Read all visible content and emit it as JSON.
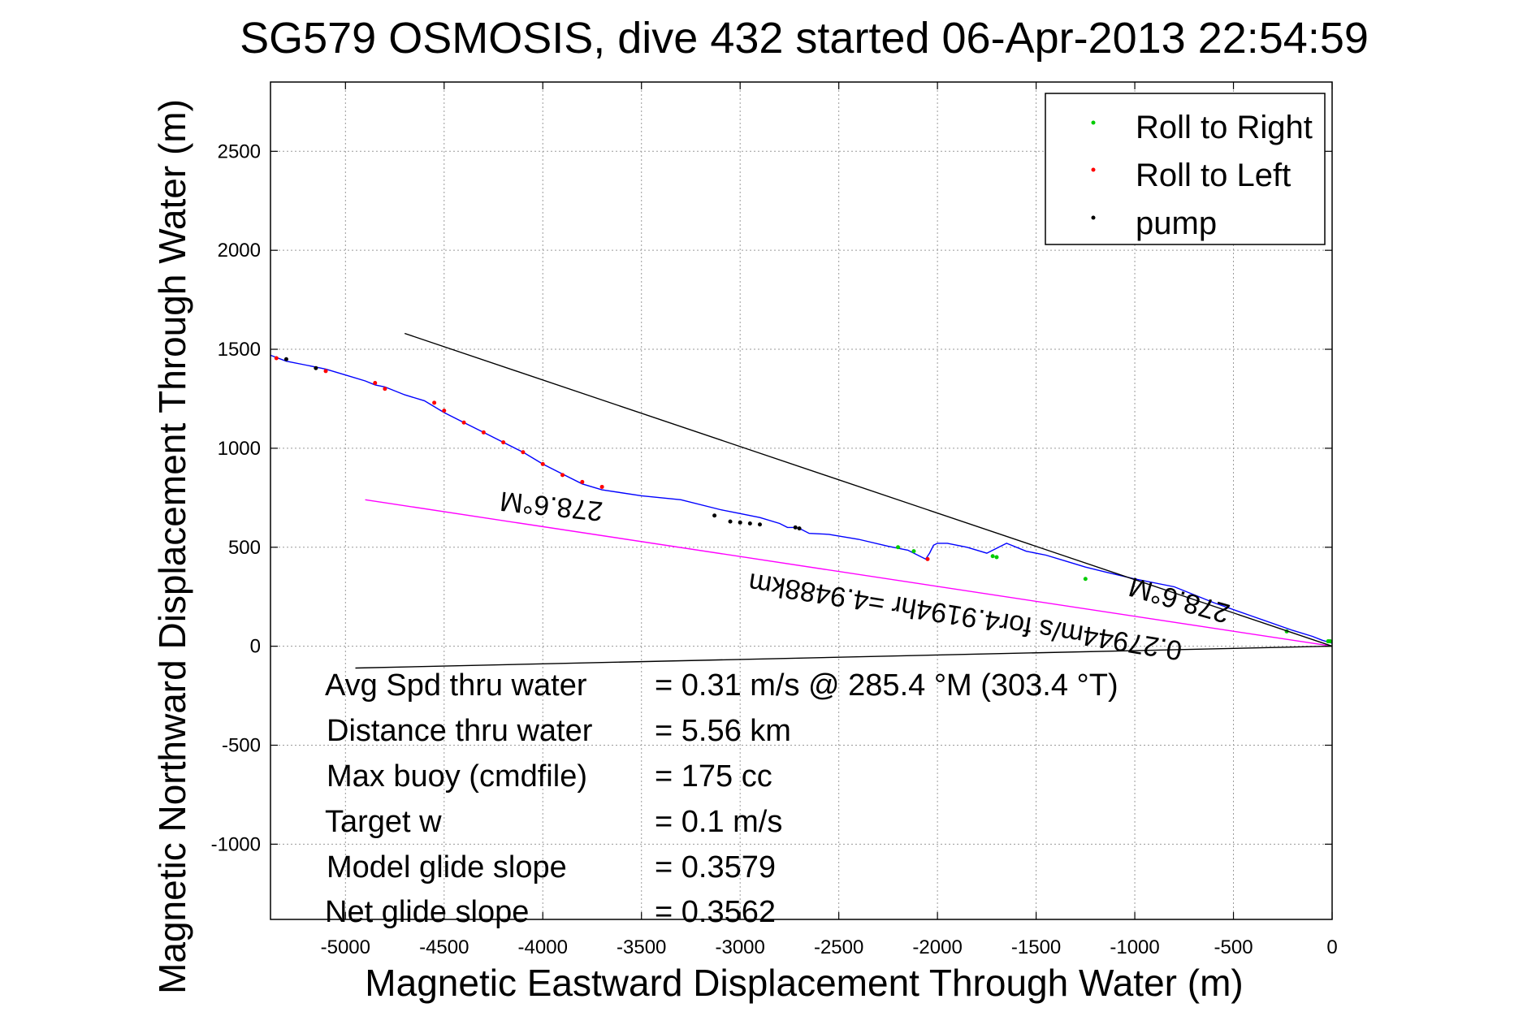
{
  "chart_data": {
    "type": "line",
    "title": "SG579 OSMOSIS, dive 432 started 06-Apr-2013 22:54:59",
    "xlabel": "Magnetic Eastward Displacement Through Water (m)",
    "ylabel": "Magnetic Northward Displacement Through Water (m)",
    "xlim": [
      -5380,
      0
    ],
    "ylim": [
      -1380,
      2850
    ],
    "x_ticks": [
      -5000,
      -4500,
      -4000,
      -3500,
      -3000,
      -2500,
      -2000,
      -1500,
      -1000,
      -500,
      0
    ],
    "x_tick_labels": [
      "-5000",
      "-4500",
      "-4000",
      "-3500",
      "-3000",
      "-2500",
      "-2000",
      "-1500",
      "-1000",
      "-500",
      "0"
    ],
    "y_ticks": [
      -1000,
      -500,
      0,
      500,
      1000,
      1500,
      2000,
      2500
    ],
    "y_tick_labels": [
      "-1000",
      "-500",
      "0",
      "500",
      "1000",
      "1500",
      "2000",
      "2500"
    ],
    "grid": true,
    "legend_position": "top-right",
    "legend": [
      {
        "label": "Roll to Right",
        "color": "#00cc00"
      },
      {
        "label": "Roll to Left",
        "color": "#ff0000"
      },
      {
        "label": "pump",
        "color": "#000000"
      }
    ],
    "series": [
      {
        "color": "#0000ff",
        "x": [
          0,
          -50,
          -100,
          -200,
          -400,
          -600,
          -800,
          -1000,
          -1150,
          -1250,
          -1350,
          -1450,
          -1550,
          -1650,
          -1750,
          -1850,
          -1950,
          -2000,
          -2020,
          -2040,
          -2060,
          -2100,
          -2150,
          -2250,
          -2400,
          -2550,
          -2650,
          -2690,
          -2720,
          -2760,
          -2800,
          -2900,
          -3000,
          -3100,
          -3300,
          -3500,
          -3700,
          -3800,
          -3900,
          -4000,
          -4100,
          -4200,
          -4300,
          -4400,
          -4500,
          -4600,
          -4700,
          -4800,
          -4850,
          -4900,
          -5000,
          -5100,
          -5200,
          -5300,
          -5380
        ],
        "y": [
          15,
          30,
          50,
          80,
          150,
          220,
          300,
          340,
          375,
          400,
          430,
          460,
          480,
          520,
          470,
          500,
          520,
          520,
          510,
          470,
          440,
          460,
          485,
          505,
          540,
          565,
          570,
          590,
          600,
          600,
          620,
          650,
          670,
          690,
          740,
          760,
          790,
          820,
          870,
          920,
          980,
          1030,
          1080,
          1130,
          1180,
          1240,
          1270,
          1310,
          1320,
          1340,
          1370,
          1400,
          1420,
          1440,
          1470
        ]
      },
      {
        "name": "Roll to Right",
        "color": "#00cc00",
        "x": [
          -10,
          -20,
          -230,
          -1250,
          -1700,
          -1720,
          -2120,
          -2200
        ],
        "y": [
          25,
          25,
          75,
          340,
          450,
          455,
          480,
          500
        ]
      },
      {
        "name": "Roll to Left",
        "color": "#ff0000",
        "x": [
          -2050,
          -3700,
          -3800,
          -3900,
          -4000,
          -4100,
          -4200,
          -4300,
          -4400,
          -4500,
          -4550,
          -4800,
          -4850,
          -5100,
          -5350
        ],
        "y": [
          440,
          805,
          830,
          865,
          920,
          980,
          1030,
          1080,
          1130,
          1190,
          1230,
          1300,
          1330,
          1390,
          1455
        ]
      },
      {
        "name": "pump",
        "color": "#000000",
        "x": [
          -2700,
          -2720,
          -2900,
          -2950,
          -3000,
          -3050,
          -3130,
          -5150,
          -5300
        ],
        "y": [
          595,
          600,
          615,
          620,
          625,
          630,
          660,
          1405,
          1450
        ]
      },
      {
        "color": "#ff00ff",
        "x": [
          0,
          -4900
        ],
        "y": [
          0,
          740
        ]
      },
      {
        "color": "#000000",
        "x": [
          0,
          -4700
        ],
        "y": [
          0,
          1580
        ]
      },
      {
        "color": "#000000",
        "x": [
          0,
          -4950
        ],
        "y": [
          0,
          -110
        ]
      }
    ],
    "annotations": [
      {
        "text": "278.6°M"
      },
      {
        "text": "278.6°M"
      },
      {
        "text": "0.27944m/s for4.9194hr =4.9488km"
      }
    ],
    "stats": [
      {
        "label": "Avg Spd thru water",
        "value": "=  0.31 m/s @ 285.4 °M (303.4 °T)"
      },
      {
        "label": "Distance thru water",
        "value": "=  5.56 km"
      },
      {
        "label": "Max buoy (cmdfile)",
        "value": "= 175 cc"
      },
      {
        "label": "Target w",
        "value": "= 0.1 m/s"
      },
      {
        "label": "Model glide slope",
        "value": "= 0.3579"
      },
      {
        "label": "Net glide slope",
        "value": "= 0.3562"
      }
    ]
  }
}
